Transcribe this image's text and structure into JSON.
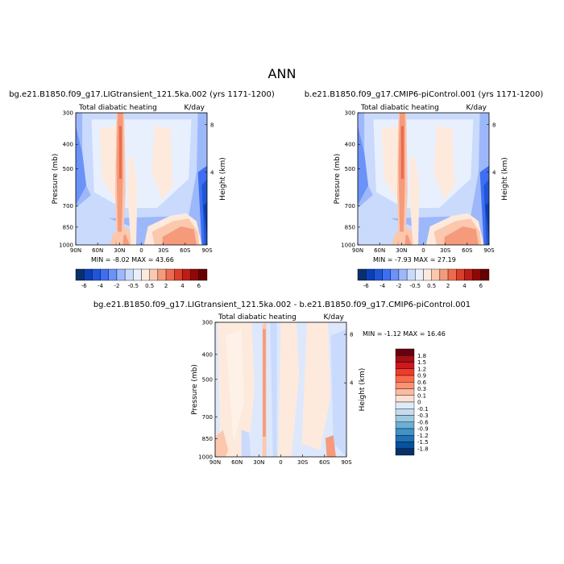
{
  "page": {
    "title": "ANN",
    "case_a": "bg.e21.B1850.f09_g17.LIGtransient_121.5ka.002 (yrs 1171-1200)",
    "case_b": "b.e21.B1850.f09_g17.CMIP6-piControl.001 (yrs 1171-1200)",
    "case_diff": "bg.e21.B1850.f09_g17.LIGtransient_121.5ka.002 - b.e21.B1850.f09_g17.CMIP6-piControl.001"
  },
  "colors": {
    "levels": [
      "#08306b",
      "#0b3fb8",
      "#1f56d8",
      "#3f6ff0",
      "#6b92f7",
      "#9db8fa",
      "#c9dafc",
      "#e8f0fe",
      "#fdeadd",
      "#fbc8ae",
      "#f59b7b",
      "#ec6b4f",
      "#da3f2b",
      "#bd1d14",
      "#8f0808",
      "#670000"
    ]
  },
  "chart_data": [
    {
      "type": "heatmap",
      "panel": "a",
      "title": "Total diabatic heating",
      "units": "K/day",
      "xlabel": "",
      "ylabel": "Pressure (mb)",
      "y2label": "Height (km)",
      "xticks": [
        "90N",
        "60N",
        "30N",
        "0",
        "30S",
        "60S",
        "90S"
      ],
      "yticks": [
        "300",
        "400",
        "500",
        "700",
        "850",
        "1000"
      ],
      "y2ticks": [
        "8",
        "4"
      ],
      "ylim": [
        1000,
        300
      ],
      "stats": {
        "min_label": "MIN = ",
        "min": "-8.02",
        "max_label": "MAX = ",
        "max": "43.66"
      },
      "colorbar": {
        "orientation": "horizontal",
        "tick_labels": [
          "-6",
          "-4",
          "-2",
          "-0.5",
          "0.5",
          "2",
          "4",
          "6"
        ],
        "levels": [
          -8,
          -6,
          -5,
          -4,
          -3,
          -2,
          -1,
          -0.5,
          0,
          0.5,
          1,
          2,
          3,
          4,
          5,
          6,
          8
        ]
      }
    },
    {
      "type": "heatmap",
      "panel": "b",
      "title": "Total diabatic heating",
      "units": "K/day",
      "xlabel": "",
      "ylabel": "Pressure (mb)",
      "y2label": "Height (km)",
      "xticks": [
        "90N",
        "60N",
        "30N",
        "0",
        "30S",
        "60S",
        "90S"
      ],
      "yticks": [
        "300",
        "400",
        "500",
        "700",
        "850",
        "1000"
      ],
      "y2ticks": [
        "8",
        "4"
      ],
      "ylim": [
        1000,
        300
      ],
      "stats": {
        "min_label": "MIN = ",
        "min": "-7.93",
        "max_label": "MAX = ",
        "max": "27.19"
      },
      "colorbar": {
        "orientation": "horizontal",
        "tick_labels": [
          "-6",
          "-4",
          "-2",
          "-0.5",
          "0.5",
          "2",
          "4",
          "6"
        ],
        "levels": [
          -8,
          -6,
          -5,
          -4,
          -3,
          -2,
          -1,
          -0.5,
          0,
          0.5,
          1,
          2,
          3,
          4,
          5,
          6,
          8
        ]
      }
    },
    {
      "type": "heatmap",
      "panel": "diff",
      "title": "Total diabatic heating",
      "units": "K/day",
      "xlabel": "",
      "ylabel": "Pressure (mb)",
      "y2label": "Height (km)",
      "xticks": [
        "90N",
        "60N",
        "30N",
        "0",
        "30S",
        "60S",
        "90S"
      ],
      "yticks": [
        "300",
        "400",
        "500",
        "700",
        "850",
        "1000"
      ],
      "y2ticks": [
        "8",
        "4"
      ],
      "ylim": [
        1000,
        300
      ],
      "stats": {
        "min_label": "MIN = ",
        "min": "-1.12",
        "max_label": "MAX = ",
        "max": "16.46"
      },
      "colorbar": {
        "orientation": "vertical",
        "tick_labels": [
          "1.8",
          "1.5",
          "1.2",
          "0.9",
          "0.6",
          "0.3",
          "0.1",
          "0",
          "-0.1",
          "-0.3",
          "-0.6",
          "-0.9",
          "-1.2",
          "-1.5",
          "-1.8"
        ]
      }
    }
  ]
}
